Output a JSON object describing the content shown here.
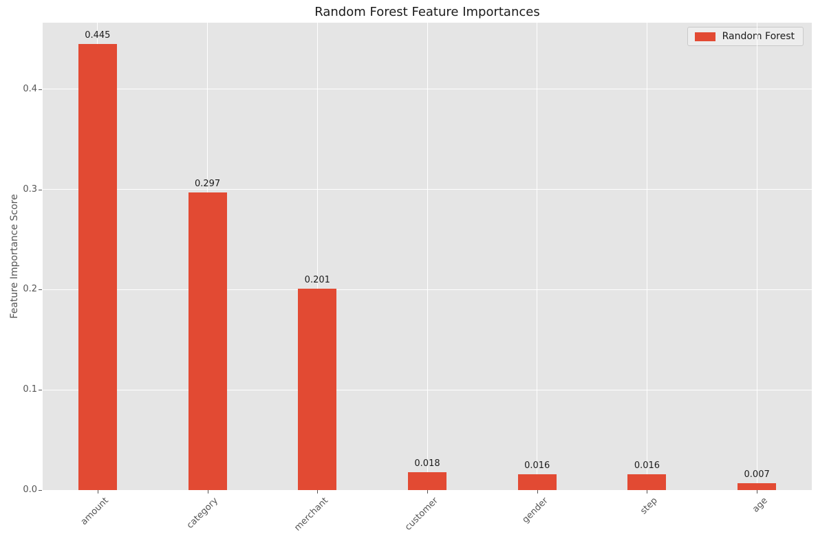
{
  "figure": {
    "background": "#ffffff",
    "plot_background": "#e5e5e5",
    "grid_color": "#ffffff",
    "tick_color": "#555555",
    "text_color": "#1a1a1a"
  },
  "chart_data": {
    "type": "bar",
    "title": "Random Forest Feature Importances",
    "xlabel": "",
    "ylabel": "Feature Importance Score",
    "categories": [
      "amount",
      "category",
      "merchant",
      "customer",
      "gender",
      "step",
      "age"
    ],
    "series": [
      {
        "name": "Random Forest",
        "color": "#e24a33",
        "values": [
          0.445,
          0.297,
          0.201,
          0.018,
          0.016,
          0.016,
          0.007
        ]
      }
    ],
    "value_labels": [
      "0.445",
      "0.297",
      "0.201",
      "0.018",
      "0.016",
      "0.016",
      "0.007"
    ],
    "ylim": [
      0,
      0.4665
    ],
    "yticks": [
      0.0,
      0.1,
      0.2,
      0.3,
      0.4
    ],
    "ytick_labels": [
      "0.0",
      "0.1",
      "0.2",
      "0.3",
      "0.4"
    ],
    "grid": true,
    "x_tick_rotation": 45,
    "legend": {
      "position": "upper right",
      "entries": [
        "Random Forest"
      ]
    }
  }
}
